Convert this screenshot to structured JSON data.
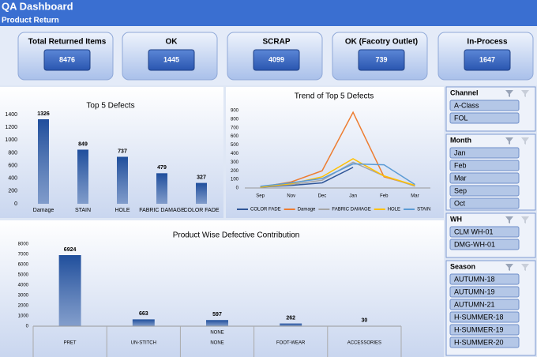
{
  "header": {
    "title": "QA Dashboard",
    "subtitle": "Product Return"
  },
  "kpis": [
    {
      "label": "Total Returned Items",
      "value": "8476"
    },
    {
      "label": "OK",
      "value": "1445"
    },
    {
      "label": "SCRAP",
      "value": "4099"
    },
    {
      "label": "OK (Facotry Outlet)",
      "value": "739"
    },
    {
      "label": "In-Process",
      "value": "1647"
    }
  ],
  "slicers": [
    {
      "title": "Channel",
      "items": [
        "A-Class",
        "FOL"
      ]
    },
    {
      "title": "Month",
      "items": [
        "Jan",
        "Feb",
        "Mar",
        "Sep",
        "Oct"
      ]
    },
    {
      "title": "WH",
      "items": [
        "CLM WH-01",
        "DMG-WH-01"
      ]
    },
    {
      "title": "Season",
      "items": [
        "AUTUMN-18",
        "AUTUMN-19",
        "AUTUMN-21",
        "H-SUMMER-18",
        "H-SUMMER-19",
        "H-SUMMER-20"
      ]
    }
  ],
  "chart_data": [
    {
      "type": "bar",
      "title": "Top 5 Defects",
      "categories": [
        "Damage",
        "STAIN",
        "HOLE",
        "FABRIC DAMAGE",
        "COLOR FADE"
      ],
      "values": [
        1326,
        849,
        737,
        479,
        327
      ],
      "color": "#1f4e9c",
      "ylim": [
        0,
        1400
      ],
      "yticks": [
        0,
        200,
        400,
        600,
        800,
        1000,
        1200,
        1400
      ]
    },
    {
      "type": "line",
      "title": "Trend of Top 5 Defects",
      "categories": [
        "Sep",
        "Nov",
        "Dec",
        "Jan",
        "Feb",
        "Mar"
      ],
      "series": [
        {
          "name": "COLOR FADE",
          "color": "#2f5597",
          "values": [
            10,
            30,
            60,
            240,
            null,
            null
          ]
        },
        {
          "name": "Damage",
          "color": "#ed7d31",
          "values": [
            10,
            70,
            200,
            880,
            130,
            30
          ]
        },
        {
          "name": "FABRIC DAMAGE",
          "color": "#a5a5a5",
          "values": [
            10,
            40,
            90,
            300,
            140,
            20
          ]
        },
        {
          "name": "HOLE",
          "color": "#ffc000",
          "values": [
            10,
            50,
            130,
            340,
            140,
            30
          ]
        },
        {
          "name": "STAIN",
          "color": "#5b9bd5",
          "values": [
            20,
            60,
            110,
            280,
            270,
            40
          ]
        }
      ],
      "ylim": [
        0,
        900
      ],
      "yticks": [
        0,
        100,
        200,
        300,
        400,
        500,
        600,
        700,
        800,
        900
      ],
      "legend": "bottom"
    },
    {
      "type": "bar",
      "title": "Product Wise Defective Contribution",
      "categories": [
        "PRET",
        "UN-STITCH",
        "NONE",
        "FOOT-WEAR",
        "ACCESSORIES"
      ],
      "sub_labels": [
        null,
        null,
        "NONE",
        null,
        null
      ],
      "values": [
        6924,
        663,
        597,
        262,
        30
      ],
      "color": "#1f4e9c",
      "ylim": [
        0,
        8000
      ],
      "yticks": [
        0,
        1000,
        2000,
        3000,
        4000,
        5000,
        6000,
        7000,
        8000
      ]
    }
  ]
}
